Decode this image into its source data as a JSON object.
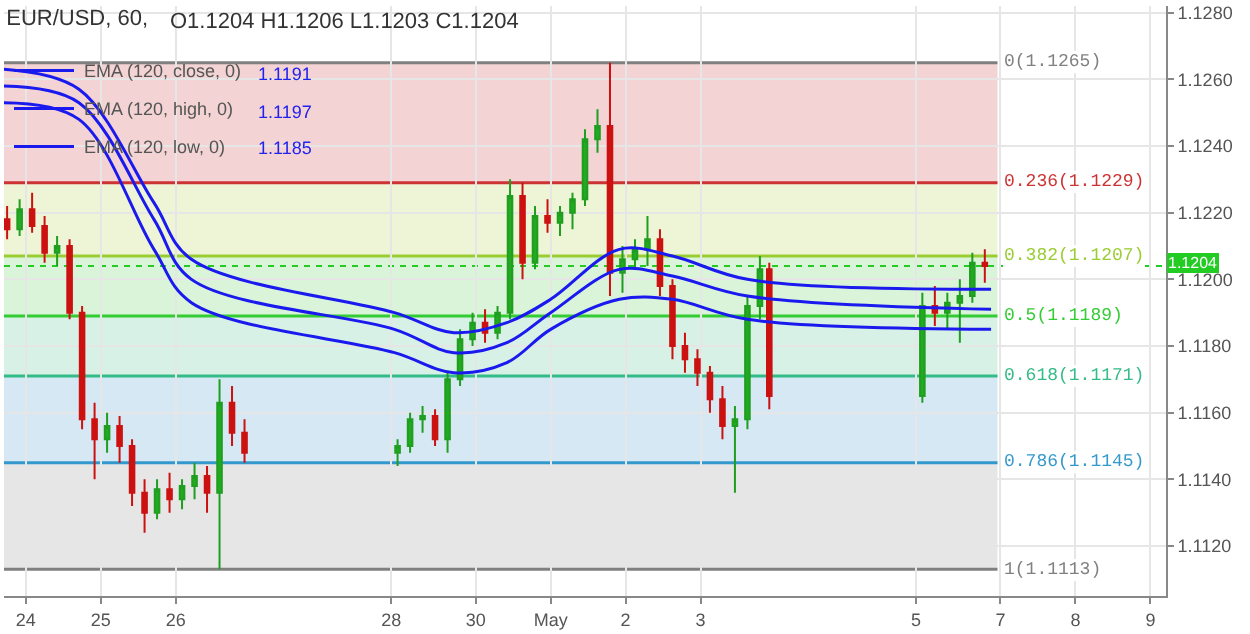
{
  "chart_data": {
    "type": "candlestick",
    "title": "EUR/USD, 60,",
    "subtitle": "O1.1204 H1.1206 L1.1203 C1.1204",
    "x": [
      "--04-23T18:00",
      "--04-23T22:00",
      "--04-24T02:00",
      "--04-24T06:00",
      "--04-24T10:00",
      "--04-24T14:00",
      "--04-24T18:00",
      "--04-24T22:00",
      "--04-25T02:00",
      "--04-25T06:00",
      "--04-25T10:00",
      "--04-25T14:00",
      "--04-25T18:00",
      "--04-25T22:00",
      "--04-26T02:00",
      "--04-26T06:00",
      "--04-26T10:00",
      "--04-26T14:00",
      "--04-26T18:00",
      "--04-26T22:00",
      "--04-28T23:00",
      "--04-29T03:00",
      "--04-29T07:00",
      "--04-29T11:00",
      "--04-29T15:00",
      "--04-29T19:00",
      "--04-29T23:00",
      "--04-30T03:00",
      "--04-30T07:00",
      "--04-30T11:00",
      "--04-30T15:00",
      "--04-30T19:00",
      "--04-30T23:00",
      "--05-01T03:00",
      "--05-01T07:00",
      "--05-01T11:00",
      "--05-01T15:00",
      "--05-01T19:00",
      "--05-01T23:00",
      "--05-02T03:00",
      "--05-02T07:00",
      "--05-02T11:00",
      "--05-02T15:00",
      "--05-02T19:00",
      "--05-02T23:00",
      "--05-03T03:00",
      "--05-03T07:00",
      "--05-03T11:00",
      "--05-03T15:00",
      "--05-03T19:00",
      "--05-03T22:00",
      "--05-05T23:00",
      "--05-06T03:00",
      "--05-06T07:00",
      "--05-06T11:00",
      "--05-06T15:00",
      "--05-06T19:00"
    ],
    "ohlc": [
      [
        1.1218,
        1.1222,
        1.1212,
        1.1215
      ],
      [
        1.1215,
        1.1224,
        1.1213,
        1.1221
      ],
      [
        1.1221,
        1.1226,
        1.1214,
        1.1216
      ],
      [
        1.1216,
        1.1219,
        1.1205,
        1.1208
      ],
      [
        1.1208,
        1.1213,
        1.1204,
        1.121
      ],
      [
        1.121,
        1.1212,
        1.1188,
        1.119
      ],
      [
        1.119,
        1.1192,
        1.1155,
        1.1158
      ],
      [
        1.1158,
        1.1163,
        1.114,
        1.1152
      ],
      [
        1.1152,
        1.116,
        1.1148,
        1.1156
      ],
      [
        1.1156,
        1.1159,
        1.1145,
        1.115
      ],
      [
        1.115,
        1.1152,
        1.1132,
        1.1136
      ],
      [
        1.1136,
        1.114,
        1.1124,
        1.113
      ],
      [
        1.113,
        1.114,
        1.1128,
        1.1137
      ],
      [
        1.1137,
        1.1142,
        1.113,
        1.1134
      ],
      [
        1.1134,
        1.114,
        1.1131,
        1.1138
      ],
      [
        1.1138,
        1.1145,
        1.1134,
        1.1141
      ],
      [
        1.1141,
        1.1144,
        1.113,
        1.1136
      ],
      [
        1.1136,
        1.117,
        1.1113,
        1.1163
      ],
      [
        1.1163,
        1.1168,
        1.115,
        1.1154
      ],
      [
        1.1154,
        1.1158,
        1.1145,
        1.1148
      ],
      [
        1.1148,
        1.1152,
        1.1144,
        1.115
      ],
      [
        1.115,
        1.116,
        1.1148,
        1.1158
      ],
      [
        1.1158,
        1.1162,
        1.1154,
        1.1159
      ],
      [
        1.1159,
        1.1161,
        1.115,
        1.1152
      ],
      [
        1.1152,
        1.1172,
        1.1148,
        1.117
      ],
      [
        1.117,
        1.1185,
        1.1168,
        1.1182
      ],
      [
        1.1182,
        1.119,
        1.118,
        1.1187
      ],
      [
        1.1187,
        1.1191,
        1.1181,
        1.1184
      ],
      [
        1.1184,
        1.1192,
        1.1182,
        1.119
      ],
      [
        1.119,
        1.123,
        1.1188,
        1.1225
      ],
      [
        1.1225,
        1.1229,
        1.12,
        1.1205
      ],
      [
        1.1205,
        1.1222,
        1.1203,
        1.1219
      ],
      [
        1.1219,
        1.1224,
        1.1214,
        1.1217
      ],
      [
        1.1217,
        1.1222,
        1.1213,
        1.122
      ],
      [
        1.122,
        1.1226,
        1.1215,
        1.1224
      ],
      [
        1.1224,
        1.1245,
        1.1222,
        1.1242
      ],
      [
        1.1242,
        1.1251,
        1.1238,
        1.1246
      ],
      [
        1.1246,
        1.1265,
        1.1195,
        1.1202
      ],
      [
        1.1202,
        1.121,
        1.1196,
        1.1206
      ],
      [
        1.1206,
        1.1212,
        1.1203,
        1.1209
      ],
      [
        1.1209,
        1.1219,
        1.1204,
        1.1212
      ],
      [
        1.1212,
        1.1215,
        1.1195,
        1.1198
      ],
      [
        1.1198,
        1.12,
        1.1176,
        1.118
      ],
      [
        1.118,
        1.1184,
        1.1172,
        1.1176
      ],
      [
        1.1176,
        1.1179,
        1.1168,
        1.1172
      ],
      [
        1.1172,
        1.1174,
        1.116,
        1.1164
      ],
      [
        1.1164,
        1.1168,
        1.1152,
        1.1156
      ],
      [
        1.1156,
        1.1162,
        1.1136,
        1.1158
      ],
      [
        1.1158,
        1.1195,
        1.1155,
        1.1192
      ],
      [
        1.1192,
        1.1207,
        1.1188,
        1.1203
      ],
      [
        1.1203,
        1.1205,
        1.1161,
        1.1165
      ],
      [
        1.1165,
        1.1196,
        1.1163,
        1.1192
      ],
      [
        1.1192,
        1.1198,
        1.1186,
        1.119
      ],
      [
        1.119,
        1.1196,
        1.1185,
        1.1193
      ],
      [
        1.1193,
        1.12,
        1.1181,
        1.1195
      ],
      [
        1.1195,
        1.1208,
        1.1193,
        1.1205
      ],
      [
        1.1205,
        1.1209,
        1.1199,
        1.1204
      ]
    ],
    "series": [
      {
        "name": "EMA (120, close, 0)",
        "type": "line",
        "color": "#1a1aee",
        "x": [
          "--04-23T17:00",
          "--04-24T17:00",
          "--04-25T17:00",
          "--04-26T05:00",
          "--04-28T22:00",
          "--04-29T17:00",
          "--04-30T10:00",
          "--05-01T00:00",
          "--05-01T22:00",
          "--05-02T15:00",
          "--05-03T15:00",
          "--05-06T21:00"
        ],
        "values": [
          1.1258,
          1.1253,
          1.1218,
          1.12,
          1.1185,
          1.1178,
          1.1181,
          1.119,
          1.1203,
          1.1201,
          1.1195,
          1.1191
        ]
      },
      {
        "name": "EMA (120, high, 0)",
        "type": "line",
        "color": "#1a1aee",
        "x": [
          "--04-23T17:00",
          "--04-24T17:00",
          "--04-25T17:00",
          "--04-26T05:00",
          "--04-28T22:00",
          "--04-29T17:00",
          "--04-30T10:00",
          "--05-01T00:00",
          "--05-01T22:00",
          "--05-02T15:00",
          "--05-03T15:00",
          "--05-06T21:00"
        ],
        "values": [
          1.1263,
          1.1257,
          1.1223,
          1.1206,
          1.119,
          1.1184,
          1.1187,
          1.1194,
          1.1209,
          1.1207,
          1.12,
          1.1197
        ]
      },
      {
        "name": "EMA (120, low, 0)",
        "type": "line",
        "color": "#1a1aee",
        "x": [
          "--04-23T17:00",
          "--04-24T17:00",
          "--04-25T17:00",
          "--04-26T05:00",
          "--04-28T22:00",
          "--04-29T17:00",
          "--04-30T10:00",
          "--05-01T00:00",
          "--05-01T22:00",
          "--05-02T15:00",
          "--05-03T15:00",
          "--05-06T21:00"
        ],
        "values": [
          1.1253,
          1.1248,
          1.1209,
          1.1193,
          1.1178,
          1.1172,
          1.1175,
          1.1185,
          1.1194,
          1.1194,
          1.1188,
          1.1185
        ]
      }
    ],
    "annotations": [
      "1.1191",
      "1.1197",
      "1.1185"
    ],
    "bands": [
      {
        "axis": "y",
        "from": 1.1229,
        "to": 1.1265,
        "color": "#f3d3d3"
      },
      {
        "axis": "y",
        "from": 1.1207,
        "to": 1.1229,
        "color": "#eef5d6"
      },
      {
        "axis": "y",
        "from": 1.1189,
        "to": 1.1207,
        "color": "#d9f4d9"
      },
      {
        "axis": "y",
        "from": 1.1171,
        "to": 1.1189,
        "color": "#d7f1e6"
      },
      {
        "axis": "y",
        "from": 1.1145,
        "to": 1.1171,
        "color": "#d5e8f4"
      },
      {
        "axis": "y",
        "from": 1.1113,
        "to": 1.1145,
        "color": "#e6e6e6"
      }
    ],
    "ref_lines": [
      {
        "axis": "y",
        "value": 1.1265,
        "label": "0(1.1265)",
        "color": "#808080"
      },
      {
        "axis": "y",
        "value": 1.1229,
        "label": "0.236(1.1229)",
        "color": "#cc3333"
      },
      {
        "axis": "y",
        "value": 1.1207,
        "label": "0.382(1.1207)",
        "color": "#9acd32"
      },
      {
        "axis": "y",
        "value": 1.1189,
        "label": "0.5(1.1189)",
        "color": "#33cc33"
      },
      {
        "axis": "y",
        "value": 1.1171,
        "label": "0.618(1.1171)",
        "color": "#33bb88"
      },
      {
        "axis": "y",
        "value": 1.1145,
        "label": "0.786(1.1145)",
        "color": "#3399cc"
      },
      {
        "axis": "y",
        "value": 1.1113,
        "label": "1(1.1113)",
        "color": "#808080"
      },
      {
        "axis": "y",
        "value": 1.1204,
        "label": "1.1204",
        "color": "#22cc22",
        "line_style": "dotted"
      }
    ],
    "xlim": [
      "--04-23T17:00",
      "--05-09T05:00"
    ],
    "xticks": [
      {
        "value": "--04-24T00:00",
        "label": "24"
      },
      {
        "value": "--04-25T00:00",
        "label": "25"
      },
      {
        "value": "--04-26T00:00",
        "label": "26"
      },
      {
        "value": "--04-28T21:00",
        "label": "28"
      },
      {
        "value": "--04-30T00:00",
        "label": "30"
      },
      {
        "value": "--05-01T00:00",
        "label": "May"
      },
      {
        "value": "--05-02T00:00",
        "label": "2"
      },
      {
        "value": "--05-03T00:00",
        "label": "3"
      },
      {
        "value": "--05-05T21:00",
        "label": "5"
      },
      {
        "value": "--05-07T00:00",
        "label": "7"
      },
      {
        "value": "--05-08T00:00",
        "label": "8"
      },
      {
        "value": "--05-09T00:00",
        "label": "9"
      }
    ],
    "ylim": [
      1.1105,
      1.1282
    ],
    "yticks": [
      {
        "value": 1.112,
        "label": "1.1120"
      },
      {
        "value": 1.114,
        "label": "1.1140"
      },
      {
        "value": 1.116,
        "label": "1.1160"
      },
      {
        "value": 1.118,
        "label": "1.1180"
      },
      {
        "value": 1.12,
        "label": "1.1200"
      },
      {
        "value": 1.122,
        "label": "1.1220"
      },
      {
        "value": 1.124,
        "label": "1.1240"
      },
      {
        "value": 1.126,
        "label": "1.1260"
      },
      {
        "value": 1.128,
        "label": "1.1280"
      }
    ],
    "grid": true,
    "legend": "top left"
  }
}
